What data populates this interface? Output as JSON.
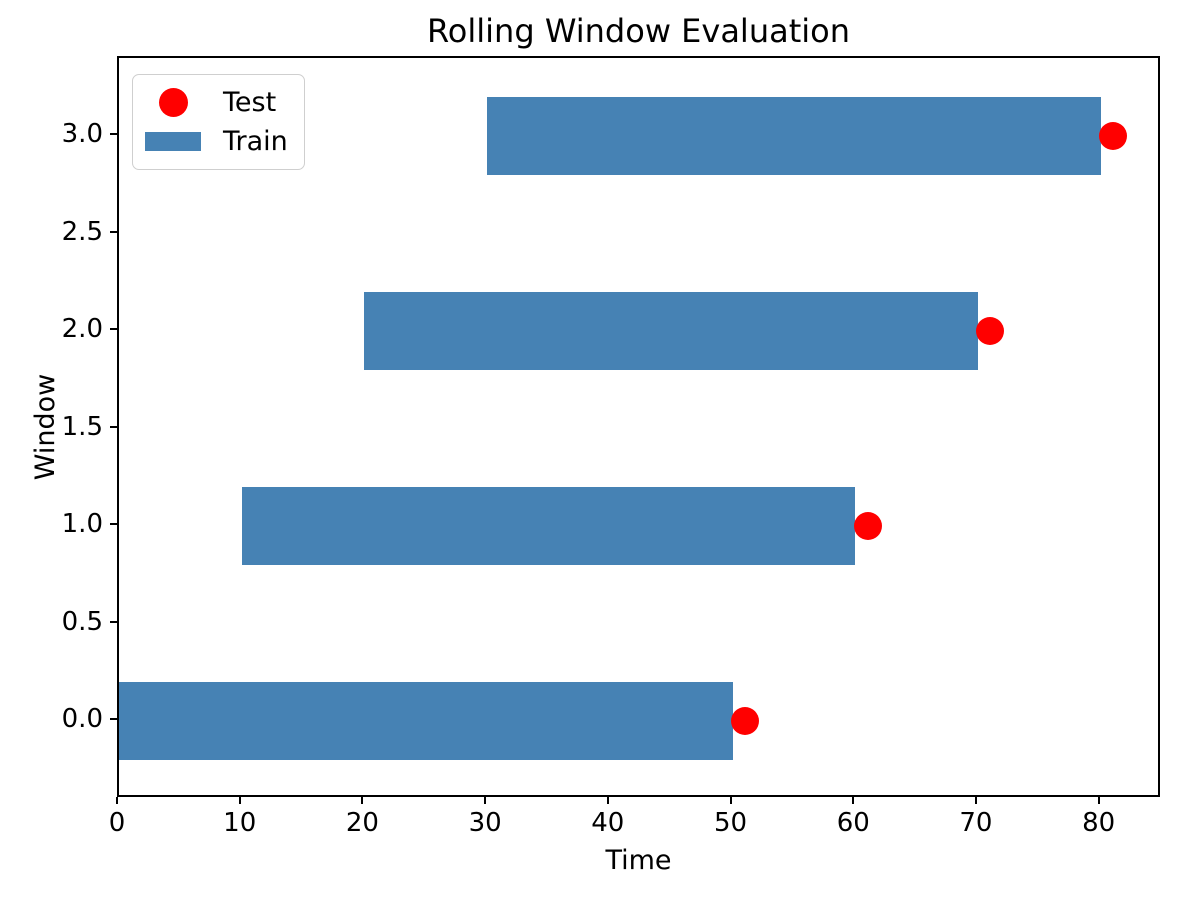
{
  "chart_data": {
    "type": "bar",
    "subtype": "horizontal-bars-with-scatter",
    "title": "Rolling Window Evaluation",
    "xlabel": "Time",
    "ylabel": "Window",
    "xlim": [
      0,
      85
    ],
    "ylim": [
      -0.4,
      3.4
    ],
    "grid": false,
    "bar_height": 0.4,
    "xticks": [
      {
        "value": 0,
        "label": "0"
      },
      {
        "value": 10,
        "label": "10"
      },
      {
        "value": 20,
        "label": "20"
      },
      {
        "value": 30,
        "label": "30"
      },
      {
        "value": 40,
        "label": "40"
      },
      {
        "value": 50,
        "label": "50"
      },
      {
        "value": 60,
        "label": "60"
      },
      {
        "value": 70,
        "label": "70"
      },
      {
        "value": 80,
        "label": "80"
      }
    ],
    "yticks": [
      {
        "value": 0.0,
        "label": "0.0"
      },
      {
        "value": 0.5,
        "label": "0.5"
      },
      {
        "value": 1.0,
        "label": "1.0"
      },
      {
        "value": 1.5,
        "label": "1.5"
      },
      {
        "value": 2.0,
        "label": "2.0"
      },
      {
        "value": 2.5,
        "label": "2.5"
      },
      {
        "value": 3.0,
        "label": "3.0"
      }
    ],
    "series": [
      {
        "name": "Train",
        "type": "barh",
        "color": "#4682B4",
        "bars": [
          {
            "window": 0,
            "start": 0,
            "end": 50
          },
          {
            "window": 1,
            "start": 10,
            "end": 60
          },
          {
            "window": 2,
            "start": 20,
            "end": 70
          },
          {
            "window": 3,
            "start": 30,
            "end": 80
          }
        ]
      },
      {
        "name": "Test",
        "type": "scatter",
        "color": "#ff0000",
        "marker_diameter_px": 28,
        "points": [
          {
            "x": 51,
            "y": 0
          },
          {
            "x": 61,
            "y": 1
          },
          {
            "x": 71,
            "y": 2
          },
          {
            "x": 81,
            "y": 3
          }
        ]
      }
    ],
    "legend": {
      "position": "upper left",
      "items": [
        {
          "label": "Test",
          "marker": "circle",
          "color": "#ff0000"
        },
        {
          "label": "Train",
          "marker": "rect",
          "color": "#4682B4"
        }
      ]
    },
    "colors": {
      "train_bar": "#4682B4",
      "test_dot": "#ff0000",
      "axis": "#000000",
      "background": "#ffffff",
      "legend_border": "#cfcfcf"
    }
  }
}
